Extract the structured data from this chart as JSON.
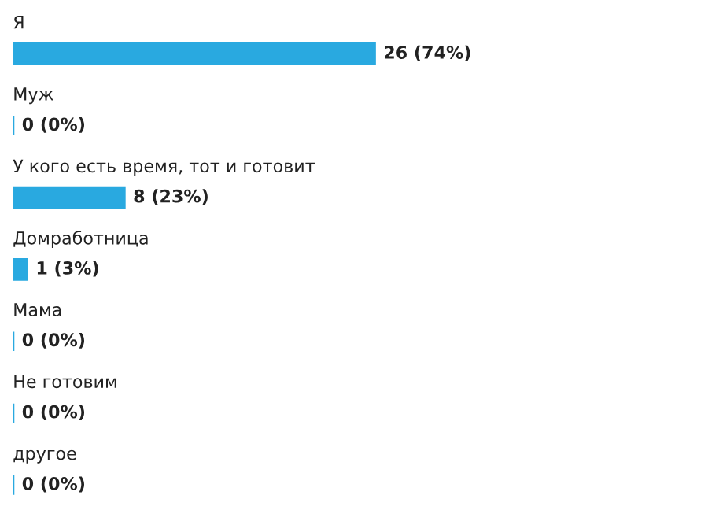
{
  "chart_data": {
    "type": "bar",
    "orientation": "horizontal",
    "categories": [
      "Я",
      "Муж",
      "У кого есть время, тот и готовит",
      "Домработница",
      "Мама",
      "Не готовим",
      "другое"
    ],
    "values": [
      26,
      0,
      8,
      1,
      0,
      0,
      0
    ],
    "value_labels": [
      "26 (74%)",
      "0 (0%)",
      "8 (23%)",
      "1 (3%)",
      "0 (0%)",
      "0 (0%)",
      "0 (0%)"
    ],
    "color": "#29a9e0"
  }
}
